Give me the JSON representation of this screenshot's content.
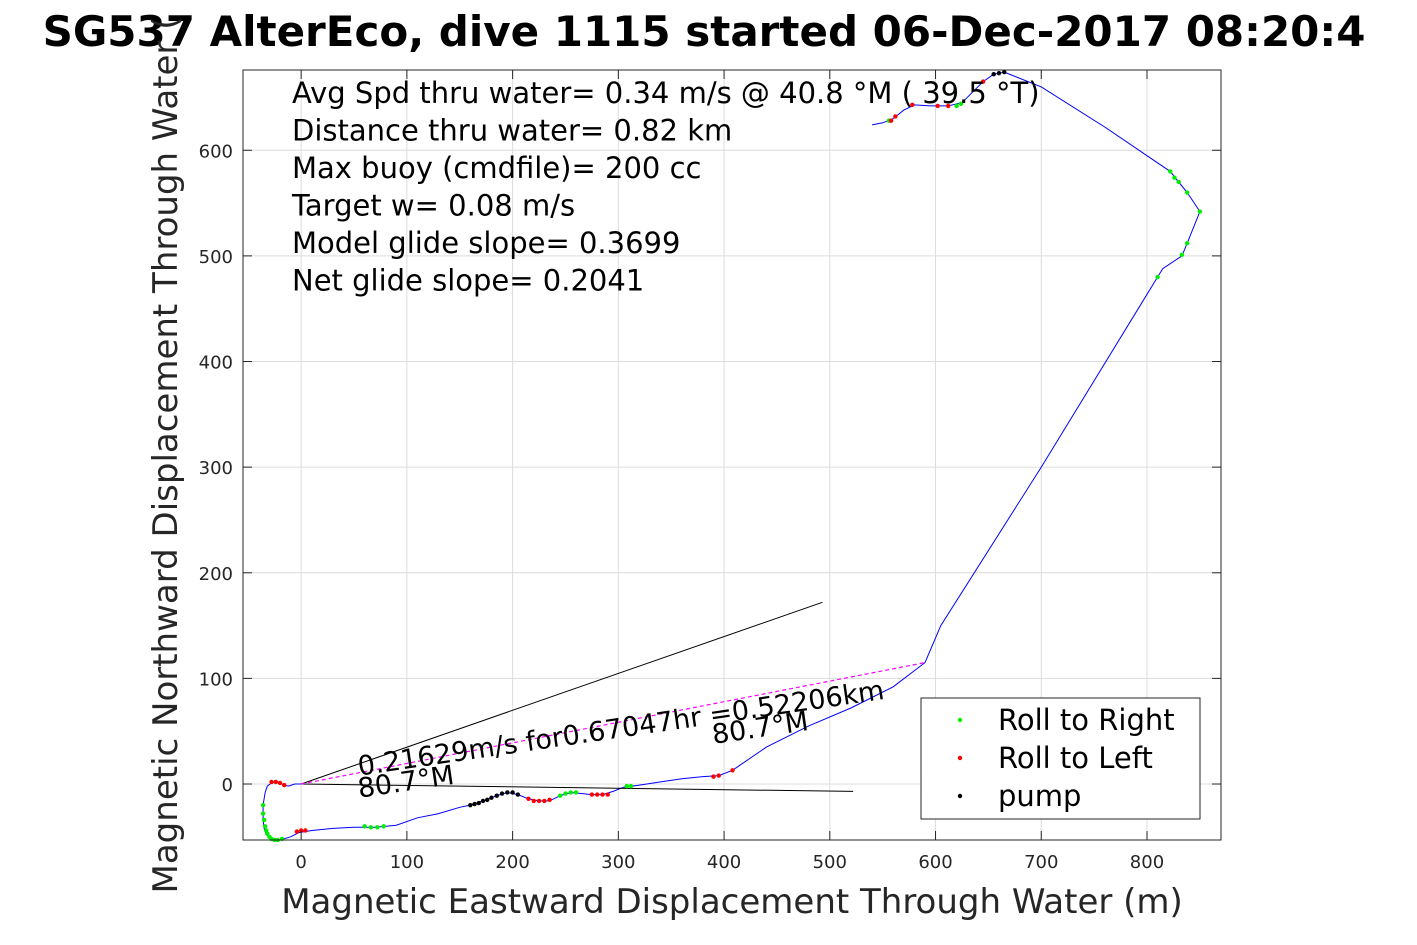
{
  "chart_data": {
    "type": "line",
    "title": "SG537 AlterEco, dive 1115 started 06-Dec-2017 08:20:4",
    "xlabel": "Magnetic Eastward Displacement Through Water (m)",
    "ylabel": "Magnetic Northward Displacement Through Water (",
    "xlim": [
      -55,
      870
    ],
    "ylim": [
      -53,
      676
    ],
    "xticks": [
      0,
      100,
      200,
      300,
      400,
      500,
      600,
      700,
      800
    ],
    "yticks": [
      0,
      100,
      200,
      300,
      400,
      500,
      600
    ],
    "grid": true,
    "legend_position": "bottom-right",
    "stats": [
      "Avg Spd thru water=  0.34 m/s @  40.8 °M ( 39.5 °T)",
      "Distance thru water=  0.82 km",
      "Max buoy (cmdfile)= 200 cc",
      "Target w= 0.08 m/s",
      "Model glide slope= 0.3699",
      "Net glide slope= 0.2041"
    ],
    "annotations": [
      {
        "text": "0.21629m/s for0.67047hr =0.52206km",
        "x": 55,
        "y": 8,
        "angle": 8.3
      },
      {
        "text": "80.7°M",
        "x": 55,
        "y": -13,
        "angle": 8.3
      },
      {
        "text": "80.7°M",
        "x": 390,
        "y": 38,
        "angle": 8.3
      }
    ],
    "series": [
      {
        "name": "",
        "color": "#0000ff",
        "points": [
          [
            0,
            0
          ],
          [
            -6,
            0
          ],
          [
            -12,
            -2
          ],
          [
            -16,
            -1
          ],
          [
            -20,
            1
          ],
          [
            -24,
            2
          ],
          [
            -28,
            1
          ],
          [
            -32,
            -2
          ],
          [
            -34,
            -8
          ],
          [
            -35,
            -14
          ],
          [
            -36,
            -20
          ],
          [
            -36,
            -28
          ],
          [
            -36,
            -34
          ],
          [
            -35,
            -42
          ],
          [
            -33,
            -48
          ],
          [
            -28,
            -52
          ],
          [
            -20,
            -53
          ],
          [
            -10,
            -50
          ],
          [
            -2,
            -46
          ],
          [
            10,
            -44
          ],
          [
            30,
            -42
          ],
          [
            50,
            -41
          ],
          [
            70,
            -41
          ],
          [
            90,
            -39
          ],
          [
            110,
            -32
          ],
          [
            130,
            -28
          ],
          [
            150,
            -22
          ],
          [
            160,
            -20
          ],
          [
            175,
            -15
          ],
          [
            185,
            -11
          ],
          [
            195,
            -8
          ],
          [
            205,
            -10
          ],
          [
            215,
            -14
          ],
          [
            225,
            -16
          ],
          [
            235,
            -16
          ],
          [
            245,
            -11
          ],
          [
            255,
            -8
          ],
          [
            265,
            -9
          ],
          [
            275,
            -10
          ],
          [
            285,
            -10
          ],
          [
            295,
            -7
          ],
          [
            305,
            -3
          ],
          [
            320,
            -1
          ],
          [
            340,
            2
          ],
          [
            360,
            5
          ],
          [
            380,
            7
          ],
          [
            395,
            8
          ],
          [
            408,
            13
          ],
          [
            440,
            35
          ],
          [
            480,
            55
          ],
          [
            520,
            72
          ],
          [
            560,
            92
          ],
          [
            590,
            115
          ],
          [
            605,
            150
          ],
          [
            700,
            300
          ],
          [
            810,
            480
          ],
          [
            815,
            488
          ],
          [
            833,
            500
          ],
          [
            838,
            512
          ],
          [
            850,
            542
          ],
          [
            838,
            560
          ],
          [
            830,
            570
          ],
          [
            822,
            580
          ],
          [
            760,
            622
          ],
          [
            700,
            660
          ],
          [
            665,
            674
          ],
          [
            655,
            672
          ],
          [
            645,
            665
          ],
          [
            635,
            655
          ],
          [
            625,
            645
          ],
          [
            612,
            642
          ],
          [
            595,
            642
          ],
          [
            580,
            643
          ],
          [
            570,
            638
          ],
          [
            560,
            630
          ],
          [
            550,
            626
          ],
          [
            540,
            624
          ]
        ]
      },
      {
        "name": "",
        "color": "#000000",
        "points": [
          [
            0,
            0
          ],
          [
            493,
            172
          ]
        ]
      },
      {
        "name": "",
        "color": "#000000",
        "points": [
          [
            0,
            0
          ],
          [
            522,
            -7
          ]
        ]
      },
      {
        "name": "",
        "color": "#ff00ff",
        "points": [
          [
            0,
            0
          ],
          [
            590,
            115
          ]
        ]
      },
      {
        "name": "Roll to Right",
        "color": "#00ee00",
        "marker": "dot",
        "points": [
          [
            -36,
            -20
          ],
          [
            -36,
            -28
          ],
          [
            -35,
            -34
          ],
          [
            -34,
            -40
          ],
          [
            -33,
            -44
          ],
          [
            -32,
            -47
          ],
          [
            -30,
            -50
          ],
          [
            -28,
            -52
          ],
          [
            -25,
            -53
          ],
          [
            -22,
            -53
          ],
          [
            -18,
            -52
          ],
          [
            60,
            -40
          ],
          [
            66,
            -41
          ],
          [
            72,
            -41
          ],
          [
            78,
            -40
          ],
          [
            245,
            -11
          ],
          [
            250,
            -9
          ],
          [
            255,
            -8
          ],
          [
            260,
            -8
          ],
          [
            308,
            -2
          ],
          [
            312,
            -2
          ],
          [
            556,
            628
          ],
          [
            620,
            642
          ],
          [
            624,
            644
          ],
          [
            822,
            580
          ],
          [
            826,
            574
          ],
          [
            830,
            570
          ],
          [
            838,
            560
          ],
          [
            850,
            542
          ],
          [
            838,
            512
          ],
          [
            833,
            501
          ],
          [
            810,
            480
          ]
        ]
      },
      {
        "name": "Roll to Left",
        "color": "#ff0000",
        "marker": "dot",
        "points": [
          [
            -28,
            2
          ],
          [
            -24,
            2
          ],
          [
            -20,
            1
          ],
          [
            -16,
            -1
          ],
          [
            -4,
            -45
          ],
          [
            0,
            -44
          ],
          [
            4,
            -44
          ],
          [
            215,
            -14
          ],
          [
            220,
            -16
          ],
          [
            225,
            -16
          ],
          [
            230,
            -16
          ],
          [
            235,
            -15
          ],
          [
            275,
            -10
          ],
          [
            280,
            -10
          ],
          [
            285,
            -10
          ],
          [
            290,
            -10
          ],
          [
            390,
            7
          ],
          [
            395,
            8
          ],
          [
            408,
            13
          ],
          [
            558,
            628
          ],
          [
            562,
            632
          ],
          [
            578,
            643
          ],
          [
            602,
            642
          ],
          [
            612,
            642
          ],
          [
            645,
            665
          ]
        ]
      },
      {
        "name": "pump",
        "color": "#000000",
        "marker": "dot",
        "points": [
          [
            160,
            -20
          ],
          [
            164,
            -19
          ],
          [
            168,
            -18
          ],
          [
            172,
            -16
          ],
          [
            176,
            -15
          ],
          [
            180,
            -13
          ],
          [
            185,
            -11
          ],
          [
            190,
            -9
          ],
          [
            195,
            -8
          ],
          [
            200,
            -8
          ],
          [
            205,
            -10
          ],
          [
            655,
            672
          ],
          [
            660,
            673
          ],
          [
            665,
            674
          ]
        ]
      }
    ]
  }
}
